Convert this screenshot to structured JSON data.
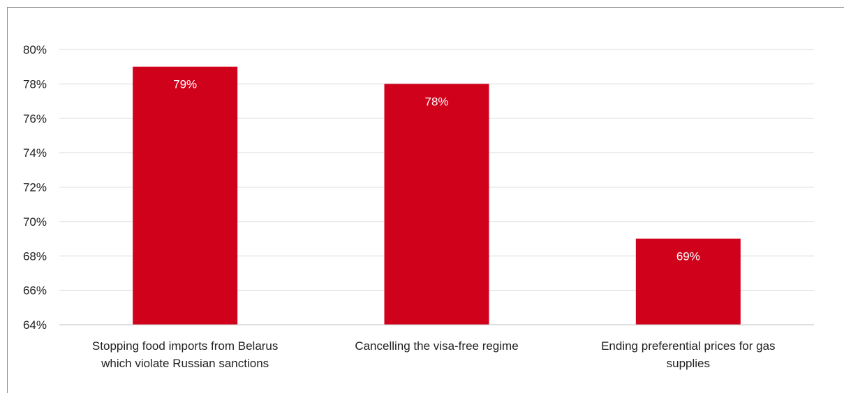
{
  "chart_data": {
    "type": "bar",
    "title": "",
    "xlabel": "",
    "ylabel": "",
    "categories": [
      [
        "Stopping food imports from Belarus",
        "which violate Russian sanctions"
      ],
      [
        "Cancelling the visa-free regime"
      ],
      [
        "Ending preferential prices for gas",
        "supplies"
      ]
    ],
    "values": [
      79,
      78,
      69
    ],
    "data_labels": [
      "79%",
      "78%",
      "69%"
    ],
    "ylim": [
      64,
      80
    ],
    "yticks": [
      64,
      66,
      68,
      70,
      72,
      74,
      76,
      78,
      80
    ],
    "ytick_labels": [
      "64%",
      "66%",
      "68%",
      "70%",
      "72%",
      "74%",
      "76%",
      "78%",
      "80%"
    ],
    "grid": true,
    "bar_color": "#d0021b",
    "grid_color": "#d9d9d9",
    "axis_color": "#bfbfbf"
  }
}
